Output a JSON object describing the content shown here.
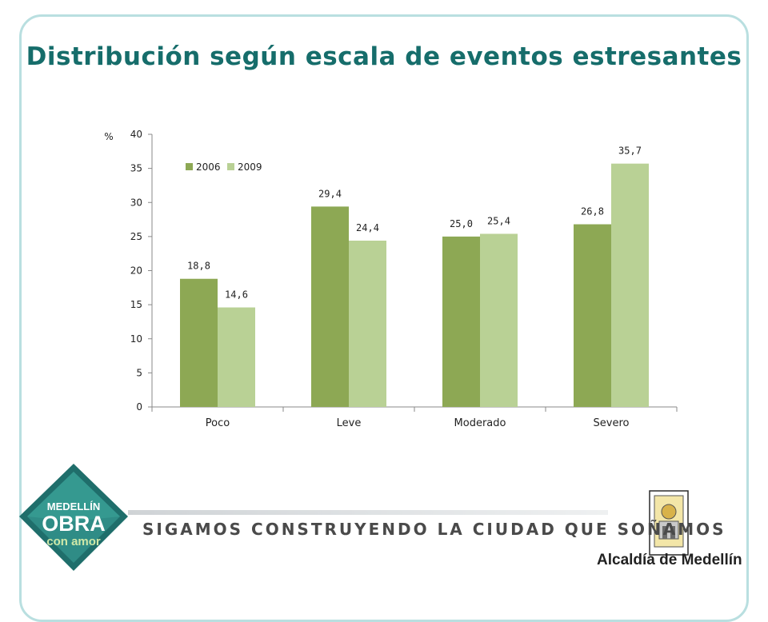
{
  "title": "Distribución según escala de eventos estresantes",
  "colors": {
    "series_2006": "#8da854",
    "series_2009": "#b9d195",
    "title": "#166d6b",
    "frame": "#b9dfe0"
  },
  "chart_data": {
    "type": "bar",
    "ylabel": "%",
    "categories": [
      "Poco",
      "Leve",
      "Moderado",
      "Severo"
    ],
    "series": [
      {
        "name": "2006",
        "values": [
          18.8,
          29.4,
          25.0,
          26.8
        ],
        "labels": [
          "18,8",
          "29,4",
          "25,0",
          "26,8"
        ]
      },
      {
        "name": "2009",
        "values": [
          14.6,
          24.4,
          25.4,
          35.7
        ],
        "labels": [
          "14,6",
          "24,4",
          "25,4",
          "35,7"
        ]
      }
    ],
    "yticks": [
      0,
      5,
      10,
      15,
      20,
      25,
      30,
      35,
      40
    ],
    "ylim": [
      0,
      40
    ],
    "legend_position": "top-left",
    "grid": false
  },
  "footer": {
    "logo_line1": "MEDELLÍN",
    "logo_line2": "OBRA",
    "logo_line3": "con amor",
    "slogan": "SIGAMOS CONSTRUYENDO LA CIUDAD QUE SOÑAMOS",
    "org": "Alcaldía de Medellín"
  }
}
